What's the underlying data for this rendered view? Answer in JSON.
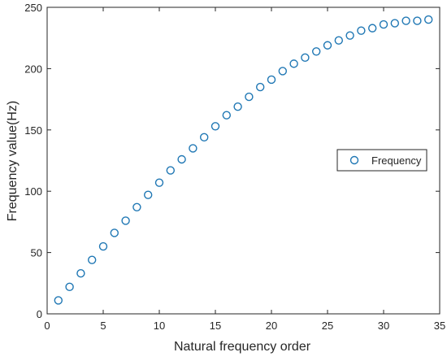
{
  "chart_data": {
    "type": "scatter",
    "title": "",
    "xlabel": "Natural frequency order",
    "ylabel": "Frequency value(Hz)",
    "xlim": [
      0,
      35
    ],
    "ylim": [
      0,
      250
    ],
    "xticks": [
      0,
      5,
      10,
      15,
      20,
      25,
      30,
      35
    ],
    "yticks": [
      0,
      50,
      100,
      150,
      200,
      250
    ],
    "grid": false,
    "legend_position": "right",
    "series": [
      {
        "name": "Frequency",
        "color": "#1f77b4",
        "marker": "open-circle",
        "x": [
          1,
          2,
          3,
          4,
          5,
          6,
          7,
          8,
          9,
          10,
          11,
          12,
          13,
          14,
          15,
          16,
          17,
          18,
          19,
          20,
          21,
          22,
          23,
          24,
          25,
          26,
          27,
          28,
          29,
          30,
          31,
          32,
          33,
          34
        ],
        "y": [
          11,
          22,
          33,
          44,
          55,
          66,
          76,
          87,
          97,
          107,
          117,
          126,
          135,
          144,
          153,
          162,
          169,
          177,
          185,
          191,
          198,
          204,
          209,
          214,
          219,
          223,
          227,
          231,
          233,
          236,
          237,
          239,
          239,
          240
        ]
      }
    ]
  }
}
